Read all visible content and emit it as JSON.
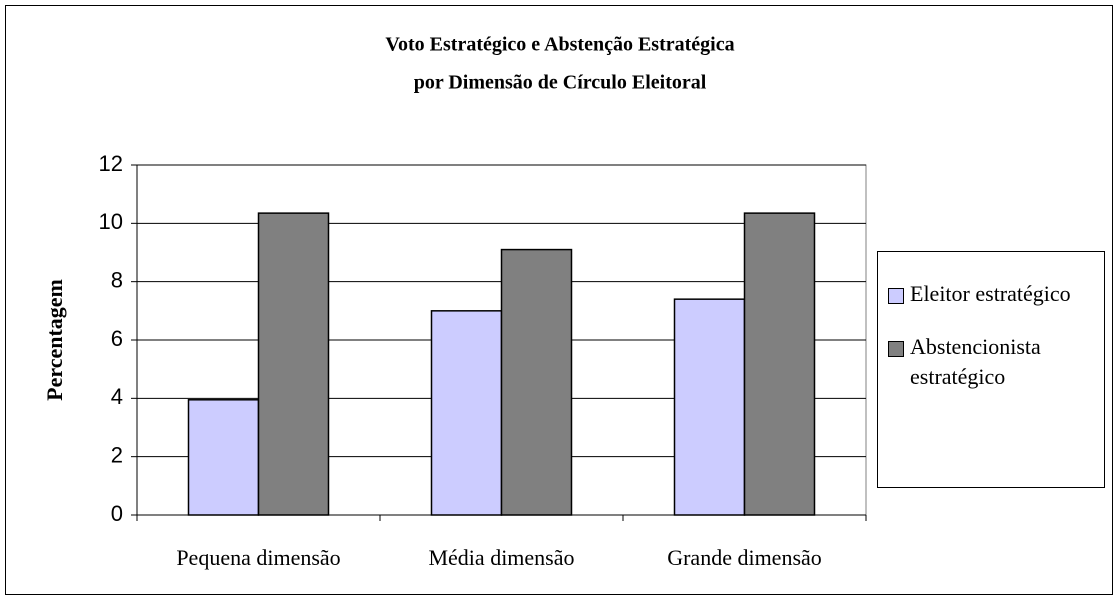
{
  "chart_data": {
    "type": "bar",
    "title": [
      "Voto Estratégico e Abstenção Estratégica",
      "por Dimensão de Círculo Eleitoral"
    ],
    "y_label": "Percentagem",
    "categories": [
      "Pequena dimensão",
      "Média dimensão",
      "Grande dimensão"
    ],
    "series": [
      {
        "name": "Eleitor estratégico",
        "color": "#ccccff",
        "values": [
          3.95,
          7.0,
          7.4
        ]
      },
      {
        "name": "Abstencionista estratégico",
        "color": "#808080",
        "values": [
          10.35,
          9.1,
          10.35
        ]
      }
    ],
    "ylim": [
      0,
      12
    ],
    "yticks": [
      0,
      2,
      4,
      6,
      8,
      10,
      12
    ],
    "grid": true,
    "legend": "right"
  }
}
